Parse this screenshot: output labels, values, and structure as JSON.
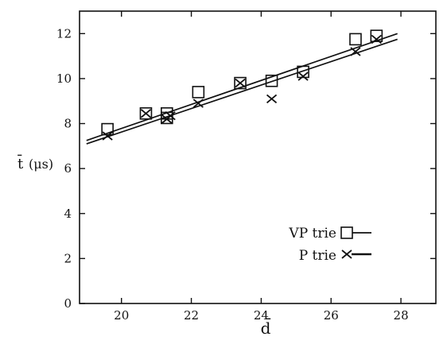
{
  "chart_data": {
    "type": "scatter",
    "title": "",
    "xlabel": "d̄",
    "ylabel_main": "t̄",
    "ylabel_unit": "(μs)",
    "xlim": [
      18.8,
      29
    ],
    "ylim": [
      0,
      13
    ],
    "xticks": [
      20,
      22,
      24,
      26,
      28
    ],
    "yticks": [
      0,
      2,
      4,
      6,
      8,
      10,
      12
    ],
    "grid": false,
    "legend_position": "bottom-right",
    "series": [
      {
        "name": "VP trie",
        "marker": "square",
        "points": [
          {
            "x": 19.6,
            "y": 7.75
          },
          {
            "x": 20.7,
            "y": 8.45
          },
          {
            "x": 21.3,
            "y": 8.45
          },
          {
            "x": 21.3,
            "y": 8.25
          },
          {
            "x": 22.2,
            "y": 9.4
          },
          {
            "x": 23.4,
            "y": 9.8
          },
          {
            "x": 24.3,
            "y": 9.9
          },
          {
            "x": 25.2,
            "y": 10.3
          },
          {
            "x": 26.7,
            "y": 11.75
          },
          {
            "x": 27.3,
            "y": 11.9
          }
        ],
        "fit_line": {
          "x": [
            19.0,
            27.9
          ],
          "y": [
            7.25,
            12.0
          ]
        }
      },
      {
        "name": "P trie",
        "marker": "x",
        "points": [
          {
            "x": 19.6,
            "y": 7.45
          },
          {
            "x": 20.7,
            "y": 8.45
          },
          {
            "x": 21.3,
            "y": 8.2
          },
          {
            "x": 21.4,
            "y": 8.35
          },
          {
            "x": 22.2,
            "y": 8.9
          },
          {
            "x": 23.4,
            "y": 9.8
          },
          {
            "x": 24.3,
            "y": 9.1
          },
          {
            "x": 25.2,
            "y": 10.1
          },
          {
            "x": 26.7,
            "y": 11.2
          },
          {
            "x": 27.3,
            "y": 11.75
          }
        ],
        "fit_line": {
          "x": [
            19.0,
            27.9
          ],
          "y": [
            7.1,
            11.75
          ]
        }
      }
    ]
  }
}
